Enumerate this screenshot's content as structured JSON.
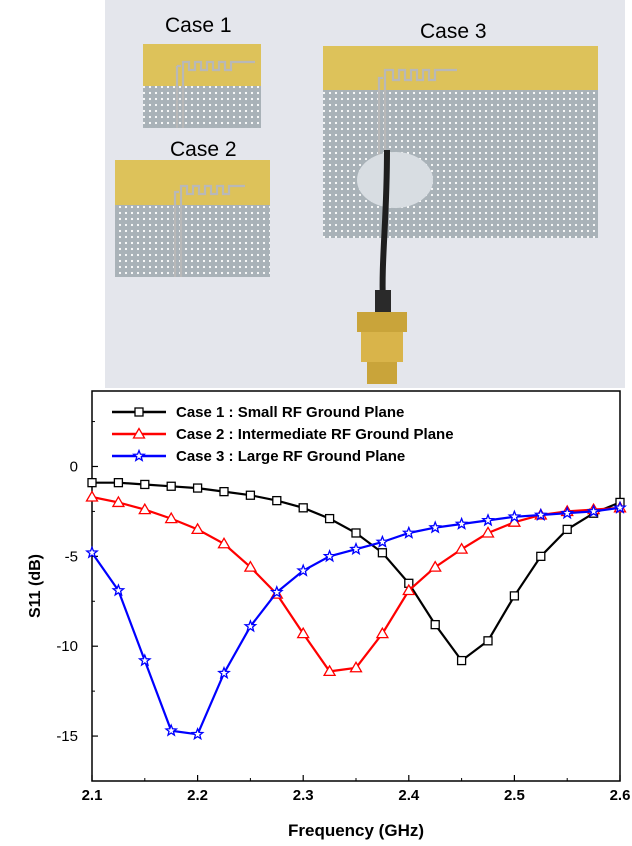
{
  "photo": {
    "case_labels": [
      "Case 1",
      "Case 2",
      "Case 3"
    ]
  },
  "chart_data": {
    "type": "line",
    "xlabel": "Frequency (GHz)",
    "ylabel": "S11 (dB)",
    "xlim": [
      2.1,
      2.6
    ],
    "ylim": [
      -17.5,
      4.2
    ],
    "xticks": [
      "2.1",
      "2.2",
      "2.3",
      "2.4",
      "2.5",
      "2.6"
    ],
    "yticks": [
      "0",
      "-5",
      "-10",
      "-15"
    ],
    "grid": false,
    "legend_position": "top-left",
    "series": [
      {
        "name": "Case 1 : Small RF Ground Plane",
        "color": "#000000",
        "marker": "square",
        "x": [
          2.1,
          2.125,
          2.15,
          2.175,
          2.2,
          2.225,
          2.25,
          2.275,
          2.3,
          2.325,
          2.35,
          2.375,
          2.4,
          2.425,
          2.45,
          2.475,
          2.5,
          2.525,
          2.55,
          2.575,
          2.6
        ],
        "y": [
          -0.9,
          -0.9,
          -1.0,
          -1.1,
          -1.2,
          -1.4,
          -1.6,
          -1.9,
          -2.3,
          -2.9,
          -3.7,
          -4.8,
          -6.5,
          -8.8,
          -10.8,
          -9.7,
          -7.2,
          -5.0,
          -3.5,
          -2.6,
          -2.0
        ]
      },
      {
        "name": "Case 2 : Intermediate RF Ground Plane",
        "color": "#ff0000",
        "marker": "triangle",
        "x": [
          2.1,
          2.125,
          2.15,
          2.175,
          2.2,
          2.225,
          2.25,
          2.275,
          2.3,
          2.325,
          2.35,
          2.375,
          2.4,
          2.425,
          2.45,
          2.475,
          2.5,
          2.525,
          2.55,
          2.575,
          2.6
        ],
        "y": [
          -1.7,
          -2.0,
          -2.4,
          -2.9,
          -3.5,
          -4.3,
          -5.6,
          -7.1,
          -9.3,
          -11.4,
          -11.2,
          -9.3,
          -6.9,
          -5.6,
          -4.6,
          -3.7,
          -3.1,
          -2.7,
          -2.5,
          -2.4,
          -2.3
        ]
      },
      {
        "name": "Case 3 : Large RF Ground Plane",
        "color": "#0000ff",
        "marker": "star",
        "x": [
          2.1,
          2.125,
          2.15,
          2.175,
          2.2,
          2.225,
          2.25,
          2.275,
          2.3,
          2.325,
          2.35,
          2.375,
          2.4,
          2.425,
          2.45,
          2.475,
          2.5,
          2.525,
          2.55,
          2.575,
          2.6
        ],
        "y": [
          -4.8,
          -6.9,
          -10.8,
          -14.7,
          -14.9,
          -11.5,
          -8.9,
          -7.0,
          -5.8,
          -5.0,
          -4.6,
          -4.2,
          -3.7,
          -3.4,
          -3.2,
          -3.0,
          -2.8,
          -2.7,
          -2.6,
          -2.5,
          -2.3
        ]
      }
    ]
  }
}
